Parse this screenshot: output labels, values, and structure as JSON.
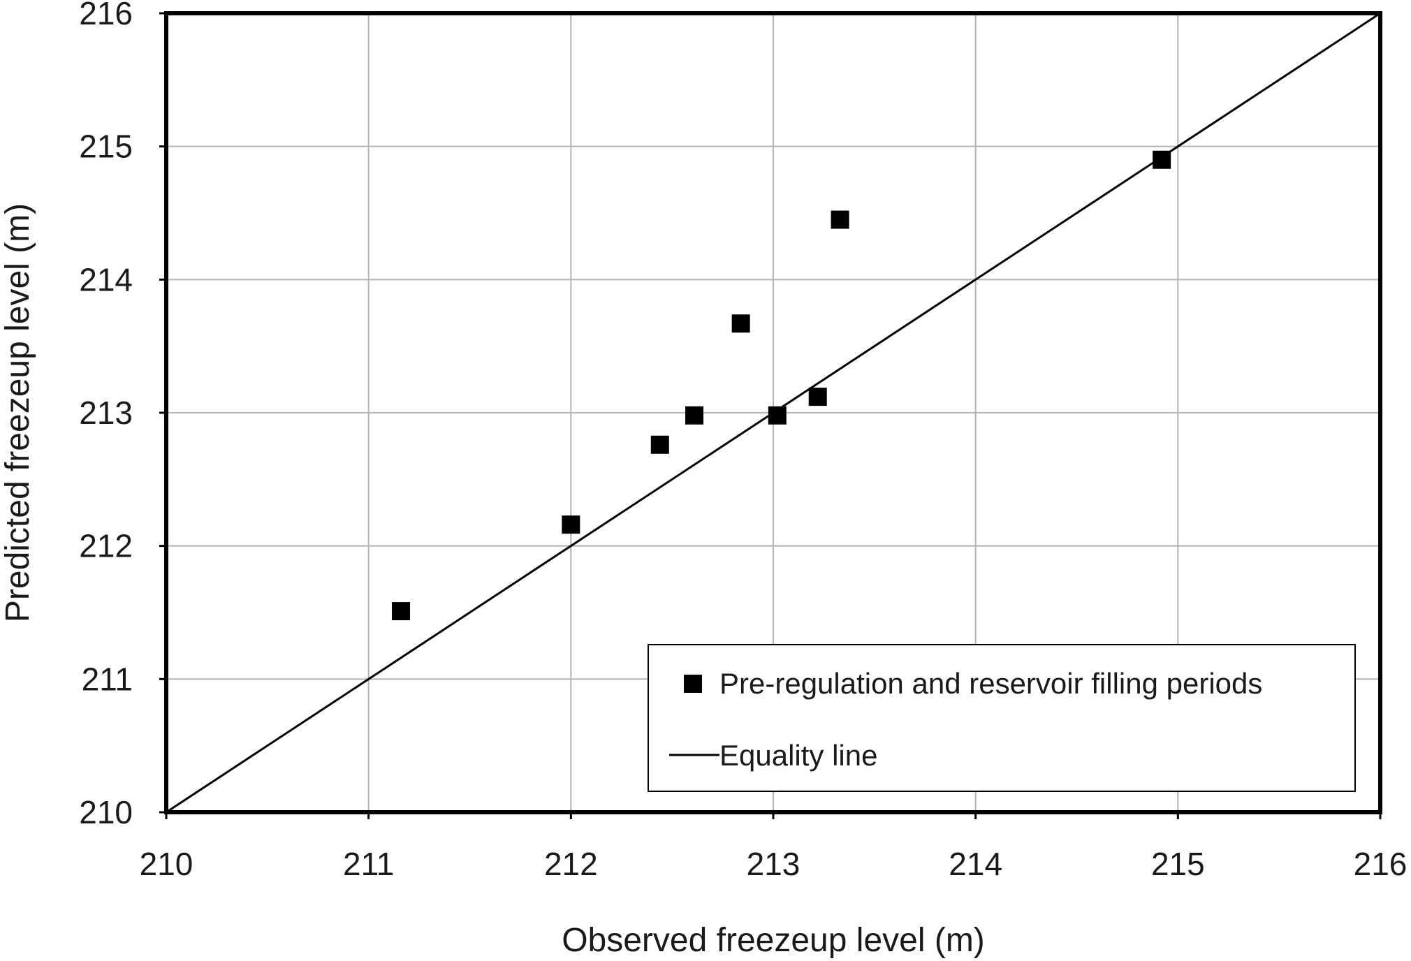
{
  "chart_data": {
    "type": "scatter",
    "title": "",
    "xlabel": "Observed freezeup level (m)",
    "ylabel": "Predicted freezeup level (m)",
    "xlim": [
      210,
      216
    ],
    "ylim": [
      210,
      216
    ],
    "x_ticks": [
      "210",
      "211",
      "212",
      "213",
      "214",
      "215",
      "216"
    ],
    "y_ticks": [
      "210",
      "211",
      "212",
      "213",
      "214",
      "215",
      "216"
    ],
    "grid": true,
    "legend_position": "bottom-right",
    "series": [
      {
        "name": "Pre-regulation and reservoir filling periods",
        "marker": "square",
        "color": "#000000",
        "points": [
          {
            "x": 211.16,
            "y": 211.51
          },
          {
            "x": 212.0,
            "y": 212.16
          },
          {
            "x": 212.44,
            "y": 212.76
          },
          {
            "x": 212.61,
            "y": 212.98
          },
          {
            "x": 212.84,
            "y": 213.67
          },
          {
            "x": 213.02,
            "y": 212.98
          },
          {
            "x": 213.22,
            "y": 213.12
          },
          {
            "x": 213.33,
            "y": 214.45
          },
          {
            "x": 214.92,
            "y": 214.9
          }
        ]
      },
      {
        "name": "Equality line",
        "type": "line",
        "color": "#000000",
        "points": [
          {
            "x": 210,
            "y": 210
          },
          {
            "x": 216,
            "y": 216
          }
        ]
      }
    ]
  }
}
